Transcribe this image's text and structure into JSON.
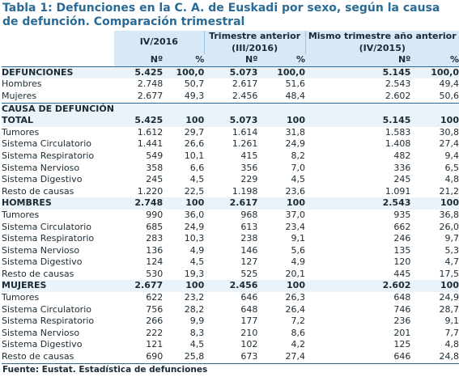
{
  "title": "Tabla 1: Defunciones en la C. A. de Euskadi por sexo, según la causa de defunción. Comparación trimestral",
  "headers": {
    "periods": [
      "IV/2016",
      "Trimestre anterior (III/2016)",
      "Mismo trimestre año anterior (IV/2015)"
    ],
    "periods_multiline": [
      [
        "IV/2016"
      ],
      [
        "Trimestre anterior",
        "(III/2016)"
      ],
      [
        "Mismo trimestre año anterior",
        "(IV/2015)"
      ]
    ],
    "n": "Nº",
    "pct": "%"
  },
  "rows": [
    {
      "label": "DEFUNCIONES",
      "style": "section-strong",
      "values": [
        "5.425",
        "100,0",
        "5.073",
        "100,0",
        "5.145",
        "100,0"
      ]
    },
    {
      "label": "Hombres",
      "style": "ind1",
      "values": [
        "2.748",
        "50,7",
        "2.617",
        "51,6",
        "2.543",
        "49,4"
      ]
    },
    {
      "label": "Mujeres",
      "style": "ind1",
      "values": [
        "2.677",
        "49,3",
        "2.456",
        "48,4",
        "2.602",
        "50,6"
      ]
    },
    {
      "label": "CAUSA DE DEFUNCIÓN",
      "style": "section",
      "values": [
        "",
        "",
        "",
        "",
        "",
        ""
      ]
    },
    {
      "label": "TOTAL",
      "style": "group",
      "values": [
        "5.425",
        "100",
        "5.073",
        "100",
        "5.145",
        "100"
      ]
    },
    {
      "label": "Tumores",
      "style": "ind2",
      "values": [
        "1.612",
        "29,7",
        "1.614",
        "31,8",
        "1.583",
        "30,8"
      ]
    },
    {
      "label": "Sistema Circulatorio",
      "style": "ind2",
      "values": [
        "1.441",
        "26,6",
        "1.261",
        "24,9",
        "1.408",
        "27,4"
      ]
    },
    {
      "label": "Sistema Respiratorio",
      "style": "ind2",
      "values": [
        "549",
        "10,1",
        "415",
        "8,2",
        "482",
        "9,4"
      ]
    },
    {
      "label": "Sistema Nervioso",
      "style": "ind2",
      "values": [
        "358",
        "6,6",
        "356",
        "7,0",
        "336",
        "6,5"
      ]
    },
    {
      "label": "Sistema Digestivo",
      "style": "ind2",
      "values": [
        "245",
        "4,5",
        "229",
        "4,5",
        "245",
        "4,8"
      ]
    },
    {
      "label": "Resto de causas",
      "style": "ind2",
      "values": [
        "1.220",
        "22,5",
        "1.198",
        "23,6",
        "1.091",
        "21,2"
      ]
    },
    {
      "label": "HOMBRES",
      "style": "group",
      "values": [
        "2.748",
        "100",
        "2.617",
        "100",
        "2.543",
        "100"
      ]
    },
    {
      "label": "Tumores",
      "style": "ind2",
      "values": [
        "990",
        "36,0",
        "968",
        "37,0",
        "935",
        "36,8"
      ]
    },
    {
      "label": "Sistema Circulatorio",
      "style": "ind2",
      "values": [
        "685",
        "24,9",
        "613",
        "23,4",
        "662",
        "26,0"
      ]
    },
    {
      "label": "Sistema Respiratorio",
      "style": "ind2",
      "values": [
        "283",
        "10,3",
        "238",
        "9,1",
        "246",
        "9,7"
      ]
    },
    {
      "label": "Sistema Nervioso",
      "style": "ind2",
      "values": [
        "136",
        "4,9",
        "146",
        "5,6",
        "135",
        "5,3"
      ]
    },
    {
      "label": "Sistema Digestivo",
      "style": "ind2",
      "values": [
        "124",
        "4,5",
        "127",
        "4,9",
        "120",
        "4,7"
      ]
    },
    {
      "label": "Resto de causas",
      "style": "ind2",
      "values": [
        "530",
        "19,3",
        "525",
        "20,1",
        "445",
        "17,5"
      ]
    },
    {
      "label": "MUJERES",
      "style": "group",
      "values": [
        "2.677",
        "100",
        "2.456",
        "100",
        "2.602",
        "100"
      ]
    },
    {
      "label": "Tumores",
      "style": "ind2",
      "values": [
        "622",
        "23,2",
        "646",
        "26,3",
        "648",
        "24,9"
      ]
    },
    {
      "label": "Sistema Circulatorio",
      "style": "ind2",
      "values": [
        "756",
        "28,2",
        "648",
        "26,4",
        "746",
        "28,7"
      ]
    },
    {
      "label": "Sistema Respiratorio",
      "style": "ind2",
      "values": [
        "266",
        "9,9",
        "177",
        "7,2",
        "236",
        "9,1"
      ]
    },
    {
      "label": "Sistema Nervioso",
      "style": "ind2",
      "values": [
        "222",
        "8,3",
        "210",
        "8,6",
        "201",
        "7,7"
      ]
    },
    {
      "label": "Sistema Digestivo",
      "style": "ind2",
      "values": [
        "121",
        "4,5",
        "102",
        "4,2",
        "125",
        "4,8"
      ]
    },
    {
      "label": "Resto de causas",
      "style": "ind2",
      "values": [
        "690",
        "25,8",
        "673",
        "27,4",
        "646",
        "24,8"
      ]
    }
  ],
  "source": "Fuente: Eustat. Estadística de defunciones",
  "colors": {
    "title": "#2a6a96",
    "header_bg": "#d7e9f6",
    "band_bg": "#eaf3fa",
    "rule": "#2a6a96"
  }
}
